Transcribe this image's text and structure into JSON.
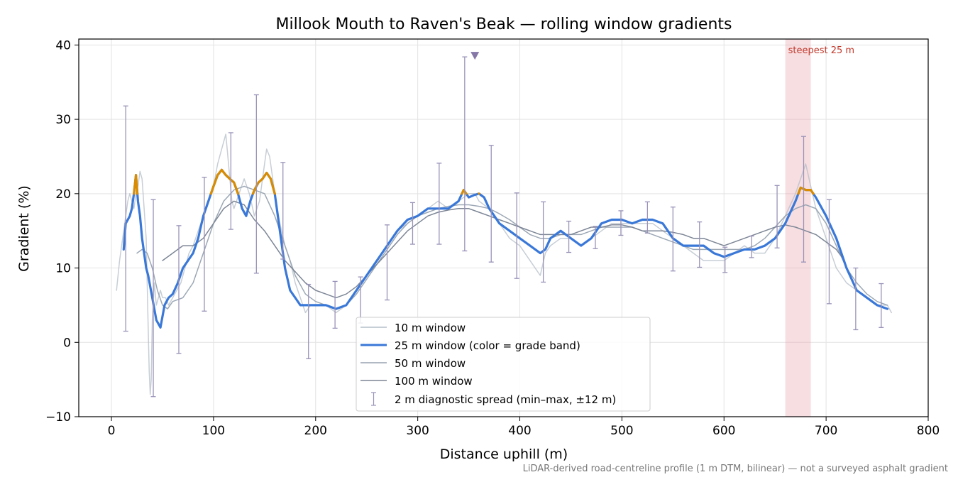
{
  "chart_data": {
    "type": "line",
    "title": "Millook Mouth to Raven's Beak — rolling window gradients",
    "xlabel": "Distance uphill (m)",
    "ylabel": "Gradient (%)",
    "xlim": [
      -32,
      800
    ],
    "ylim": [
      -10,
      40.8
    ],
    "xticks": [
      0,
      100,
      200,
      300,
      400,
      500,
      600,
      700,
      800
    ],
    "yticks": [
      -10,
      0,
      10,
      20,
      30,
      40
    ],
    "xtick_labels": [
      "0",
      "100",
      "200",
      "300",
      "400",
      "500",
      "600",
      "700",
      "800"
    ],
    "ytick_labels": [
      "−10",
      "0",
      "10",
      "20",
      "30",
      "40"
    ],
    "grid": true,
    "legend_position": "lower-center",
    "footnote": "LiDAR-derived road-centreline profile (1 m DTM, bilinear) — not a surveyed asphalt gradient",
    "series": [
      {
        "name": "10 m window",
        "color": "#b4bec8",
        "x": [
          5,
          8,
          10,
          12,
          14,
          16,
          18,
          20,
          22,
          24,
          26,
          28,
          30,
          32,
          34,
          35,
          36,
          37,
          38,
          39,
          40,
          42,
          44,
          46,
          48,
          50,
          53,
          56,
          60,
          64,
          68,
          72,
          76,
          80,
          85,
          90,
          95,
          100,
          104,
          108,
          112,
          114,
          116,
          118,
          120,
          125,
          130,
          135,
          140,
          145,
          150,
          152,
          155,
          160,
          165,
          170,
          175,
          180,
          185,
          190,
          195,
          200,
          210,
          220,
          230,
          240,
          250,
          260,
          270,
          280,
          290,
          300,
          310,
          320,
          330,
          340,
          350,
          356,
          360,
          370,
          380,
          390,
          400,
          405,
          410,
          415,
          420,
          425,
          430,
          440,
          450,
          460,
          470,
          480,
          490,
          500,
          510,
          520,
          530,
          540,
          550,
          560,
          570,
          580,
          590,
          600,
          610,
          620,
          630,
          640,
          650,
          660,
          670,
          675,
          680,
          685,
          690,
          700,
          710,
          720,
          730,
          740,
          750,
          760,
          764
        ],
        "y": [
          7,
          11,
          13,
          15,
          17,
          19,
          20,
          19,
          18,
          20,
          21,
          23,
          22,
          18,
          14,
          8,
          2,
          -4,
          -7,
          -5,
          3,
          8,
          5,
          6,
          7,
          6,
          6,
          5,
          6,
          7,
          8,
          10,
          12,
          13,
          15,
          17,
          19,
          21,
          24,
          26,
          28,
          25,
          22,
          19,
          18,
          20,
          22,
          20,
          17,
          19,
          24,
          26,
          25,
          20,
          16,
          13,
          11,
          8,
          6,
          4,
          5,
          5,
          5,
          4,
          5,
          7,
          9,
          11,
          13,
          15,
          16,
          17,
          18,
          19,
          18,
          19,
          20,
          20,
          19,
          18,
          16,
          14,
          13,
          12,
          11,
          10,
          9,
          12,
          13,
          14,
          14,
          13,
          14,
          15,
          16,
          16,
          16,
          16,
          16,
          15,
          14,
          13,
          12,
          11,
          11,
          11,
          12,
          13,
          12,
          12,
          14,
          17,
          20,
          22,
          24,
          21,
          18,
          14,
          10,
          8,
          7,
          6,
          5,
          5,
          4
        ]
      },
      {
        "name": "25 m window (color = grade band)",
        "color": "#3a78d8",
        "band_color": "#d98c00",
        "band_threshold": 20,
        "x": [
          12,
          14,
          16,
          18,
          20,
          22,
          24,
          26,
          28,
          30,
          32,
          34,
          36,
          40,
          44,
          48,
          52,
          56,
          60,
          65,
          70,
          75,
          80,
          85,
          90,
          95,
          100,
          104,
          108,
          112,
          116,
          120,
          124,
          128,
          132,
          136,
          140,
          144,
          148,
          152,
          156,
          160,
          165,
          170,
          175,
          180,
          185,
          190,
          195,
          200,
          210,
          220,
          230,
          240,
          250,
          260,
          270,
          280,
          290,
          300,
          310,
          320,
          330,
          340,
          345,
          350,
          355,
          360,
          365,
          370,
          375,
          380,
          390,
          400,
          410,
          420,
          425,
          430,
          440,
          450,
          460,
          470,
          480,
          490,
          500,
          510,
          520,
          530,
          540,
          550,
          560,
          570,
          580,
          590,
          600,
          610,
          620,
          630,
          640,
          650,
          660,
          670,
          675,
          680,
          685,
          690,
          700,
          710,
          720,
          730,
          740,
          750,
          760
        ],
        "y": [
          12.5,
          16,
          16.5,
          17,
          18,
          20,
          22.5,
          19,
          17,
          14,
          12,
          10,
          9,
          6,
          3,
          2,
          5,
          6,
          6.5,
          8,
          10,
          11,
          12,
          14,
          17,
          19,
          21,
          22.5,
          23.2,
          22.5,
          22,
          21.5,
          20,
          18,
          17,
          19,
          20.5,
          21.5,
          22,
          22.8,
          22,
          20,
          15,
          10,
          7,
          6,
          5,
          5,
          5,
          5,
          5,
          4.5,
          5,
          7,
          9,
          11,
          13,
          15,
          16.5,
          17,
          18,
          18,
          18,
          19,
          20.5,
          19.5,
          19.8,
          20,
          19.5,
          18,
          17,
          16,
          15,
          14,
          13,
          12,
          12.5,
          14,
          15,
          14,
          13,
          14,
          16,
          16.5,
          16.5,
          16,
          16.5,
          16.5,
          16,
          14,
          13,
          13,
          13,
          12,
          11.5,
          12,
          12.5,
          12.5,
          13,
          14,
          16,
          19,
          20.8,
          20.5,
          20.5,
          19.5,
          17,
          14,
          10,
          7,
          6,
          5,
          4.5
        ]
      },
      {
        "name": "50 m window",
        "color": "#97a3b1",
        "x": [
          25,
          30,
          35,
          40,
          45,
          50,
          55,
          60,
          70,
          80,
          90,
          100,
          110,
          120,
          130,
          140,
          150,
          160,
          170,
          180,
          190,
          200,
          210,
          220,
          230,
          240,
          250,
          260,
          270,
          280,
          290,
          300,
          310,
          320,
          330,
          340,
          350,
          360,
          370,
          380,
          390,
          400,
          410,
          420,
          430,
          440,
          450,
          460,
          470,
          480,
          490,
          500,
          510,
          520,
          530,
          540,
          550,
          560,
          570,
          580,
          590,
          600,
          610,
          620,
          630,
          640,
          650,
          660,
          670,
          680,
          690,
          700,
          710,
          720,
          730,
          740,
          750,
          760
        ],
        "y": [
          12,
          12.5,
          12,
          10,
          7,
          5,
          4.5,
          5.5,
          6,
          8,
          12,
          16,
          19,
          20.5,
          21,
          20.5,
          20,
          17,
          13,
          9,
          6.5,
          5.5,
          5,
          4.5,
          5,
          6.5,
          8.5,
          10.5,
          12.5,
          14.5,
          16,
          17,
          17.5,
          18,
          18.3,
          18.5,
          18.5,
          18.3,
          18,
          17.3,
          16.5,
          15.5,
          14.5,
          14,
          14,
          14.5,
          14.5,
          14.5,
          15,
          15.5,
          15.5,
          15.5,
          15.5,
          15,
          14.5,
          14,
          13.5,
          13,
          12.5,
          12.5,
          12.5,
          12.5,
          12.5,
          12.5,
          13,
          14,
          15.5,
          17,
          18,
          18.5,
          18,
          16,
          13,
          10,
          8,
          6.5,
          5.5,
          5
        ]
      },
      {
        "name": "100 m window",
        "color": "#7d8696",
        "x": [
          50,
          60,
          70,
          80,
          90,
          100,
          110,
          120,
          130,
          140,
          150,
          160,
          170,
          180,
          190,
          200,
          210,
          220,
          230,
          240,
          250,
          260,
          270,
          280,
          290,
          300,
          310,
          320,
          330,
          340,
          350,
          360,
          370,
          380,
          390,
          400,
          410,
          420,
          430,
          440,
          450,
          460,
          470,
          480,
          490,
          500,
          510,
          520,
          530,
          540,
          550,
          560,
          570,
          580,
          590,
          600,
          610,
          620,
          630,
          640,
          650,
          660,
          670,
          680,
          690,
          700,
          710,
          718
        ],
        "y": [
          11,
          12,
          13,
          13,
          14,
          16,
          18,
          19,
          18.5,
          16.5,
          15,
          13,
          11,
          9.5,
          8,
          7,
          6.5,
          6,
          6.5,
          7.5,
          9,
          10.5,
          12,
          13.5,
          15,
          16,
          17,
          17.5,
          17.8,
          18,
          18,
          17.5,
          17,
          16.5,
          16,
          15.5,
          15,
          14.5,
          14.5,
          14.5,
          14.5,
          15,
          15.5,
          15.5,
          15.8,
          15.8,
          15.5,
          15,
          15,
          15,
          14.8,
          14.5,
          14,
          14,
          13.5,
          13,
          13.5,
          14,
          14.5,
          15,
          15.5,
          15.8,
          15.5,
          15,
          14.5,
          13.5,
          12.5,
          11
        ]
      }
    ],
    "errorbars": {
      "name": "2 m diagnostic spread (min–max, ±12 m)",
      "color": "#9a93b8",
      "points": [
        {
          "x": 14,
          "y": 16,
          "lo": 1.5,
          "hi": 31.8
        },
        {
          "x": 41,
          "y": 6,
          "lo": -7.3,
          "hi": 19.2
        },
        {
          "x": 66,
          "y": 6.5,
          "lo": -1.5,
          "hi": 15.7
        },
        {
          "x": 91,
          "y": 17,
          "lo": 4.2,
          "hi": 22.2
        },
        {
          "x": 117,
          "y": 22,
          "lo": 15.2,
          "hi": 28.2
        },
        {
          "x": 142,
          "y": 21.5,
          "lo": 9.3,
          "hi": 33.3
        },
        {
          "x": 168,
          "y": 20,
          "lo": 11.2,
          "hi": 24.2
        },
        {
          "x": 193,
          "y": 5,
          "lo": -2.2,
          "hi": 7.8
        },
        {
          "x": 219,
          "y": 4.5,
          "lo": 1.9,
          "hi": 8.2
        },
        {
          "x": 244,
          "y": 6.5,
          "lo": 2.6,
          "hi": 8.8
        },
        {
          "x": 270,
          "y": 11,
          "lo": 5.7,
          "hi": 15.8
        },
        {
          "x": 295,
          "y": 16,
          "lo": 13.2,
          "hi": 18.8
        },
        {
          "x": 321,
          "y": 18,
          "lo": 13.2,
          "hi": 24.1
        },
        {
          "x": 346,
          "y": 20,
          "lo": 12.3,
          "hi": 38.4
        },
        {
          "x": 372,
          "y": 18,
          "lo": 10.8,
          "hi": 26.5
        },
        {
          "x": 397,
          "y": 14,
          "lo": 8.6,
          "hi": 20.1
        },
        {
          "x": 423,
          "y": 12,
          "lo": 8.1,
          "hi": 18.9
        },
        {
          "x": 448,
          "y": 15,
          "lo": 12.1,
          "hi": 16.3
        },
        {
          "x": 474,
          "y": 14,
          "lo": 12.6,
          "hi": 15.6
        },
        {
          "x": 499,
          "y": 16.5,
          "lo": 14.4,
          "hi": 17.7
        },
        {
          "x": 525,
          "y": 16.5,
          "lo": 14.7,
          "hi": 18.9
        },
        {
          "x": 550,
          "y": 14,
          "lo": 9.6,
          "hi": 18.2
        },
        {
          "x": 576,
          "y": 13,
          "lo": 10.1,
          "hi": 16.2
        },
        {
          "x": 601,
          "y": 11.5,
          "lo": 9.4,
          "hi": 12.8
        },
        {
          "x": 627,
          "y": 12.5,
          "lo": 11.4,
          "hi": 14.3
        },
        {
          "x": 652,
          "y": 14,
          "lo": 12.7,
          "hi": 21.1
        },
        {
          "x": 678,
          "y": 20.5,
          "lo": 10.8,
          "hi": 27.7
        },
        {
          "x": 703,
          "y": 14,
          "lo": 5.2,
          "hi": 19.2
        },
        {
          "x": 729,
          "y": 7,
          "lo": 1.7,
          "hi": 10
        },
        {
          "x": 754,
          "y": 5,
          "lo": 2,
          "hi": 7.9
        }
      ]
    },
    "marker": {
      "x": 356,
      "y": 38.5,
      "shape": "triangle-down",
      "color": "#8577a8"
    },
    "highlight": {
      "x0": 660,
      "x1": 685,
      "label": "steepest 25 m",
      "color": "#e8a0aa",
      "label_color": "#c0392b"
    }
  }
}
